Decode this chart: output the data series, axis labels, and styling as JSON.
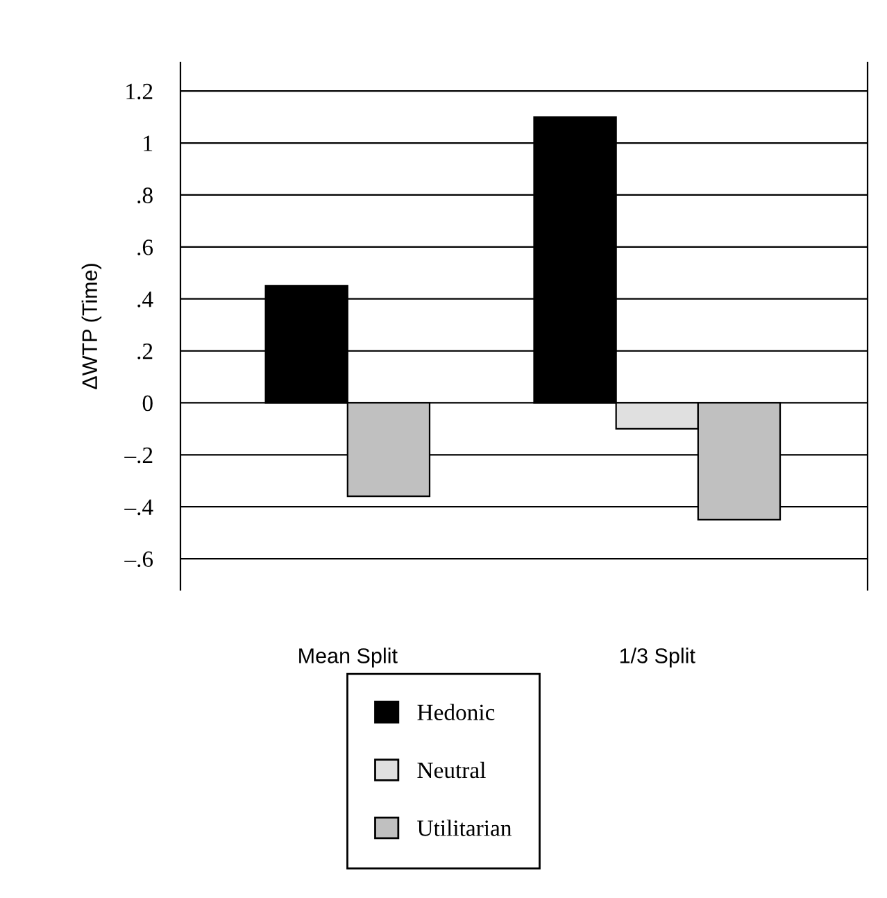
{
  "chart_data": {
    "type": "bar",
    "ylabel": "ΔWTP (Time)",
    "categories": [
      "Mean Split",
      "1/3 Split"
    ],
    "series": [
      {
        "name": "Hedonic",
        "color": "#000000",
        "values": [
          0.45,
          1.1
        ]
      },
      {
        "name": "Neutral",
        "color": "#e0e0e0",
        "values": [
          null,
          -0.1
        ]
      },
      {
        "name": "Utilitarian",
        "color": "#c0c0c0",
        "values": [
          -0.36,
          -0.45
        ]
      }
    ],
    "ylim": [
      -0.72,
      1.31
    ],
    "yticks": [
      {
        "value": -0.6,
        "label": "–.6"
      },
      {
        "value": -0.4,
        "label": "–.4"
      },
      {
        "value": -0.2,
        "label": "–.2"
      },
      0,
      {
        "value": 0.2,
        "label": ".2"
      },
      {
        "value": 0.4,
        "label": ".4"
      },
      {
        "value": 0.6,
        "label": ".6"
      },
      {
        "value": 0.8,
        "label": ".8"
      },
      1,
      1.2
    ],
    "grid": "y",
    "legend": "bottom"
  }
}
